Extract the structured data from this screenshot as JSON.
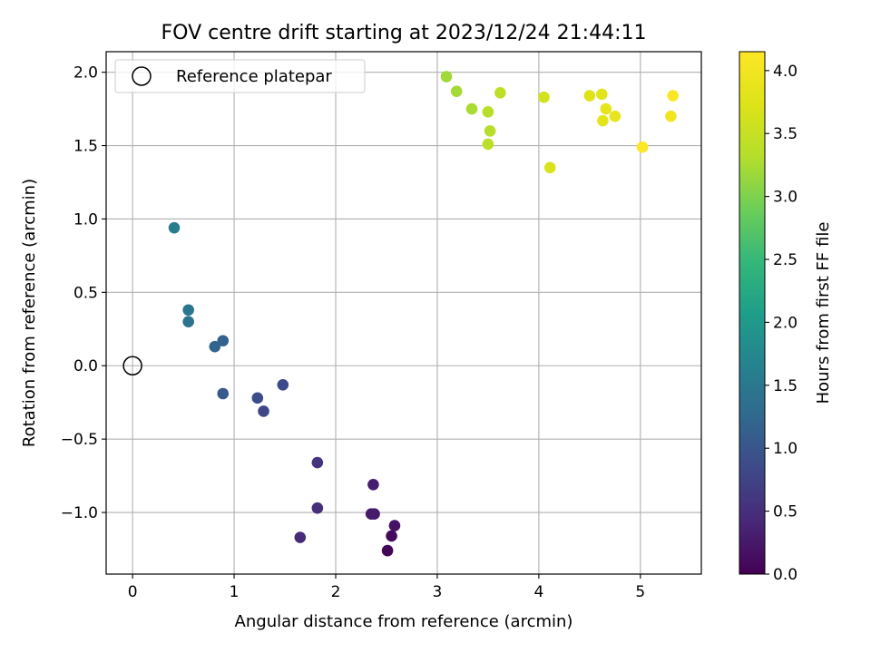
{
  "chart_data": {
    "type": "scatter",
    "title": "FOV centre drift starting at 2023/12/24 21:44:11",
    "xlabel": "Angular distance from reference (arcmin)",
    "ylabel": "Rotation from reference (arcmin)",
    "xlim": [
      -0.26,
      5.6
    ],
    "ylim": [
      -1.42,
      2.14
    ],
    "xticks": [
      0,
      1,
      2,
      3,
      4,
      5
    ],
    "xtick_labels": [
      "0",
      "1",
      "2",
      "3",
      "4",
      "5"
    ],
    "yticks": [
      -1.0,
      -0.5,
      0.0,
      0.5,
      1.0,
      1.5,
      2.0
    ],
    "ytick_labels": [
      "−1.0",
      "−0.5",
      "0.0",
      "0.5",
      "1.0",
      "1.5",
      "2.0"
    ],
    "grid": true,
    "colormap": "viridis",
    "colorbar": {
      "label": "Hours from first FF file",
      "range": [
        0.0,
        4.15
      ],
      "ticks": [
        0.0,
        0.5,
        1.0,
        1.5,
        2.0,
        2.5,
        3.0,
        3.5,
        4.0
      ],
      "tick_labels": [
        "0.0",
        "0.5",
        "1.0",
        "1.5",
        "2.0",
        "2.5",
        "3.0",
        "3.5",
        "4.0"
      ]
    },
    "legend": {
      "position": "top-left",
      "entries": [
        {
          "label": "Reference platepar",
          "marker": "open-circle",
          "color": "#000000",
          "x": 0.0,
          "y": 0.0
        }
      ]
    },
    "points": [
      {
        "x": 2.51,
        "y": -1.26,
        "hours": 0.05
      },
      {
        "x": 2.55,
        "y": -1.16,
        "hours": 0.1
      },
      {
        "x": 2.58,
        "y": -1.09,
        "hours": 0.18
      },
      {
        "x": 2.38,
        "y": -1.01,
        "hours": 0.25
      },
      {
        "x": 2.35,
        "y": -1.01,
        "hours": 0.28
      },
      {
        "x": 2.37,
        "y": -0.81,
        "hours": 0.3
      },
      {
        "x": 1.65,
        "y": -1.17,
        "hours": 0.45
      },
      {
        "x": 1.82,
        "y": -0.97,
        "hours": 0.5
      },
      {
        "x": 1.82,
        "y": -0.66,
        "hours": 0.55
      },
      {
        "x": 1.48,
        "y": -0.13,
        "hours": 0.85
      },
      {
        "x": 1.29,
        "y": -0.31,
        "hours": 0.8
      },
      {
        "x": 1.23,
        "y": -0.22,
        "hours": 0.88
      },
      {
        "x": 0.89,
        "y": -0.19,
        "hours": 1.05
      },
      {
        "x": 0.89,
        "y": 0.17,
        "hours": 1.15
      },
      {
        "x": 0.81,
        "y": 0.13,
        "hours": 1.2
      },
      {
        "x": 0.55,
        "y": 0.3,
        "hours": 1.4
      },
      {
        "x": 0.55,
        "y": 0.38,
        "hours": 1.45
      },
      {
        "x": 0.41,
        "y": 0.94,
        "hours": 1.55
      },
      {
        "x": 3.09,
        "y": 1.97,
        "hours": 3.2
      },
      {
        "x": 3.19,
        "y": 1.87,
        "hours": 3.22
      },
      {
        "x": 3.34,
        "y": 1.75,
        "hours": 3.25
      },
      {
        "x": 3.5,
        "y": 1.73,
        "hours": 3.35
      },
      {
        "x": 3.52,
        "y": 1.6,
        "hours": 3.35
      },
      {
        "x": 3.5,
        "y": 1.51,
        "hours": 3.38
      },
      {
        "x": 3.62,
        "y": 1.86,
        "hours": 3.4
      },
      {
        "x": 4.05,
        "y": 1.83,
        "hours": 3.62
      },
      {
        "x": 4.11,
        "y": 1.35,
        "hours": 3.7
      },
      {
        "x": 4.5,
        "y": 1.84,
        "hours": 3.75
      },
      {
        "x": 4.62,
        "y": 1.85,
        "hours": 3.8
      },
      {
        "x": 4.63,
        "y": 1.67,
        "hours": 3.82
      },
      {
        "x": 4.66,
        "y": 1.75,
        "hours": 3.85
      },
      {
        "x": 4.75,
        "y": 1.7,
        "hours": 3.88
      },
      {
        "x": 5.02,
        "y": 1.49,
        "hours": 4.12
      },
      {
        "x": 5.3,
        "y": 1.7,
        "hours": 4.0
      },
      {
        "x": 5.32,
        "y": 1.84,
        "hours": 4.1
      }
    ]
  }
}
